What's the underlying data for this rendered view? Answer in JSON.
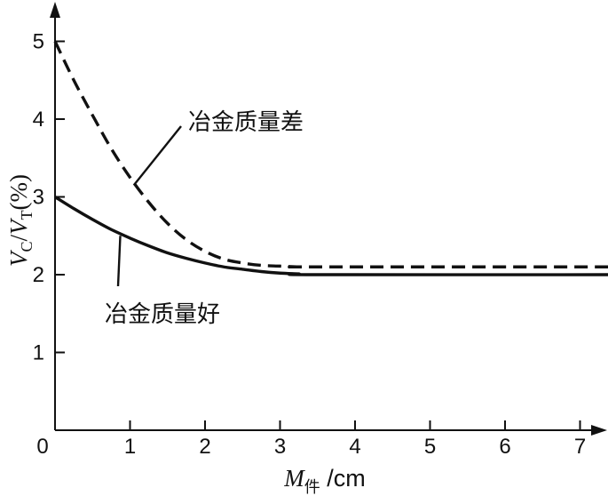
{
  "chart_data": {
    "type": "line",
    "xlabel": {
      "main": "M",
      "sub": "件",
      "unit": " /cm"
    },
    "ylabel": {
      "v1": "V",
      "sub1": "C",
      "sep": "/",
      "v2": "V",
      "sub2": "T",
      "unit": "(%)"
    },
    "xlim": [
      0,
      7.6
    ],
    "ylim": [
      0,
      5.3
    ],
    "x_ticks": [
      0,
      1,
      2,
      3,
      4,
      5,
      6,
      7
    ],
    "y_ticks": [
      1,
      2,
      3,
      4,
      5
    ],
    "grid": false,
    "series": [
      {
        "name": "冶金质量差",
        "style": "dashed",
        "points": [
          [
            0,
            5.0
          ],
          [
            0.25,
            4.5
          ],
          [
            0.5,
            4.05
          ],
          [
            0.75,
            3.62
          ],
          [
            1.0,
            3.25
          ],
          [
            1.25,
            2.93
          ],
          [
            1.5,
            2.66
          ],
          [
            1.75,
            2.45
          ],
          [
            2.0,
            2.3
          ],
          [
            2.25,
            2.2
          ],
          [
            2.5,
            2.15
          ],
          [
            2.75,
            2.12
          ],
          [
            3.0,
            2.11
          ],
          [
            3.25,
            2.1
          ],
          [
            3.5,
            2.1
          ],
          [
            7.6,
            2.1
          ]
        ]
      },
      {
        "name": "冶金质量好",
        "style": "solid",
        "points": [
          [
            0,
            3.0
          ],
          [
            0.25,
            2.85
          ],
          [
            0.5,
            2.71
          ],
          [
            0.75,
            2.58
          ],
          [
            1.0,
            2.47
          ],
          [
            1.25,
            2.37
          ],
          [
            1.5,
            2.28
          ],
          [
            1.75,
            2.21
          ],
          [
            2.0,
            2.15
          ],
          [
            2.25,
            2.1
          ],
          [
            2.5,
            2.07
          ],
          [
            2.75,
            2.04
          ],
          [
            3.0,
            2.02
          ],
          [
            3.25,
            2.01
          ],
          [
            3.5,
            2.0
          ],
          [
            7.6,
            2.0
          ]
        ]
      }
    ],
    "annotations": [
      {
        "text": "冶金质量差",
        "series": 0,
        "from": [
          1.05,
          3.15
        ]
      },
      {
        "text": "冶金质量好",
        "series": 1,
        "from": [
          0.87,
          2.5
        ]
      }
    ]
  }
}
